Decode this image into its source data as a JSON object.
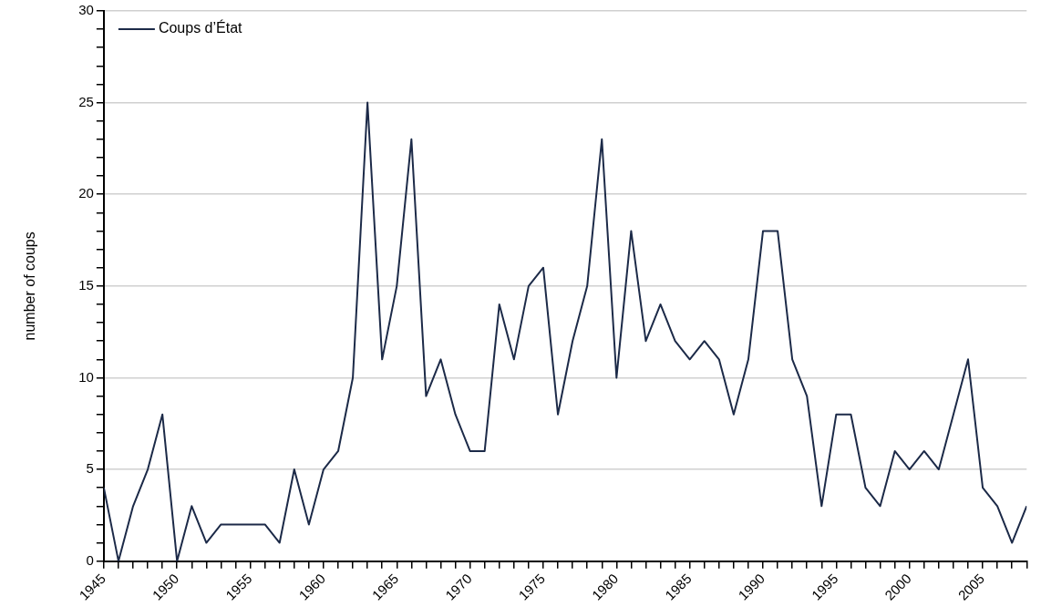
{
  "chart_data": {
    "type": "line",
    "ylabel": "number of coups",
    "x": [
      1945,
      1946,
      1947,
      1948,
      1949,
      1950,
      1951,
      1952,
      1953,
      1954,
      1955,
      1956,
      1957,
      1958,
      1959,
      1960,
      1961,
      1962,
      1963,
      1964,
      1965,
      1966,
      1967,
      1968,
      1969,
      1970,
      1971,
      1972,
      1973,
      1974,
      1975,
      1976,
      1977,
      1978,
      1979,
      1980,
      1981,
      1982,
      1983,
      1984,
      1985,
      1986,
      1987,
      1988,
      1989,
      1990,
      1991,
      1992,
      1993,
      1994,
      1995,
      1996,
      1997,
      1998,
      1999,
      2000,
      2001,
      2002,
      2003,
      2004,
      2005,
      2006,
      2007,
      2008
    ],
    "series": [
      {
        "name": "Coups d’État",
        "color": "#1c2a48",
        "values": [
          4,
          0,
          3,
          5,
          8,
          0,
          3,
          1,
          2,
          2,
          2,
          2,
          1,
          5,
          2,
          5,
          6,
          10,
          25,
          11,
          15,
          23,
          9,
          11,
          8,
          6,
          6,
          14,
          11,
          15,
          16,
          8,
          12,
          15,
          23,
          10,
          18,
          12,
          14,
          12,
          11,
          12,
          11,
          8,
          11,
          18,
          18,
          11,
          9,
          3,
          8,
          8,
          4,
          3,
          6,
          5,
          6,
          5,
          8,
          11,
          4,
          3,
          1,
          3
        ]
      }
    ],
    "xlim": [
      1945,
      2008
    ],
    "xticks": [
      1945,
      {
        "value": 1946,
        "label": null
      },
      {
        "value": 1947,
        "label": null
      },
      {
        "value": 1948,
        "label": null
      },
      {
        "value": 1949,
        "label": null
      },
      1950,
      {
        "value": 1951,
        "label": null
      },
      {
        "value": 1952,
        "label": null
      },
      {
        "value": 1953,
        "label": null
      },
      {
        "value": 1954,
        "label": null
      },
      1955,
      {
        "value": 1956,
        "label": null
      },
      {
        "value": 1957,
        "label": null
      },
      {
        "value": 1958,
        "label": null
      },
      {
        "value": 1959,
        "label": null
      },
      1960,
      {
        "value": 1961,
        "label": null
      },
      {
        "value": 1962,
        "label": null
      },
      {
        "value": 1963,
        "label": null
      },
      {
        "value": 1964,
        "label": null
      },
      1965,
      {
        "value": 1966,
        "label": null
      },
      {
        "value": 1967,
        "label": null
      },
      {
        "value": 1968,
        "label": null
      },
      {
        "value": 1969,
        "label": null
      },
      1970,
      {
        "value": 1971,
        "label": null
      },
      {
        "value": 1972,
        "label": null
      },
      {
        "value": 1973,
        "label": null
      },
      {
        "value": 1974,
        "label": null
      },
      1975,
      {
        "value": 1976,
        "label": null
      },
      {
        "value": 1977,
        "label": null
      },
      {
        "value": 1978,
        "label": null
      },
      {
        "value": 1979,
        "label": null
      },
      1980,
      {
        "value": 1981,
        "label": null
      },
      {
        "value": 1982,
        "label": null
      },
      {
        "value": 1983,
        "label": null
      },
      {
        "value": 1984,
        "label": null
      },
      1985,
      {
        "value": 1986,
        "label": null
      },
      {
        "value": 1987,
        "label": null
      },
      {
        "value": 1988,
        "label": null
      },
      {
        "value": 1989,
        "label": null
      },
      1990,
      {
        "value": 1991,
        "label": null
      },
      {
        "value": 1992,
        "label": null
      },
      {
        "value": 1993,
        "label": null
      },
      {
        "value": 1994,
        "label": null
      },
      1995,
      {
        "value": 1996,
        "label": null
      },
      {
        "value": 1997,
        "label": null
      },
      {
        "value": 1998,
        "label": null
      },
      {
        "value": 1999,
        "label": null
      },
      2000,
      {
        "value": 2001,
        "label": null
      },
      {
        "value": 2002,
        "label": null
      },
      {
        "value": 2003,
        "label": null
      },
      {
        "value": 2004,
        "label": null
      },
      2005,
      {
        "value": 2006,
        "label": null
      },
      {
        "value": 2007,
        "label": null
      },
      {
        "value": 2008,
        "label": null
      }
    ],
    "ylim": [
      0,
      30
    ],
    "yticks": [
      0,
      {
        "value": 1,
        "label": null
      },
      {
        "value": 2,
        "label": null
      },
      {
        "value": 3,
        "label": null
      },
      {
        "value": 4,
        "label": null
      },
      5,
      {
        "value": 6,
        "label": null
      },
      {
        "value": 7,
        "label": null
      },
      {
        "value": 8,
        "label": null
      },
      {
        "value": 9,
        "label": null
      },
      10,
      {
        "value": 11,
        "label": null
      },
      {
        "value": 12,
        "label": null
      },
      {
        "value": 13,
        "label": null
      },
      {
        "value": 14,
        "label": null
      },
      15,
      {
        "value": 16,
        "label": null
      },
      {
        "value": 17,
        "label": null
      },
      {
        "value": 18,
        "label": null
      },
      {
        "value": 19,
        "label": null
      },
      20,
      {
        "value": 21,
        "label": null
      },
      {
        "value": 22,
        "label": null
      },
      {
        "value": 23,
        "label": null
      },
      {
        "value": 24,
        "label": null
      },
      25,
      {
        "value": 26,
        "label": null
      },
      {
        "value": 27,
        "label": null
      },
      {
        "value": 28,
        "label": null
      },
      {
        "value": 29,
        "label": null
      },
      30
    ],
    "grid": "y",
    "legend": "top left",
    "marker": "none",
    "line_style": "solid"
  }
}
